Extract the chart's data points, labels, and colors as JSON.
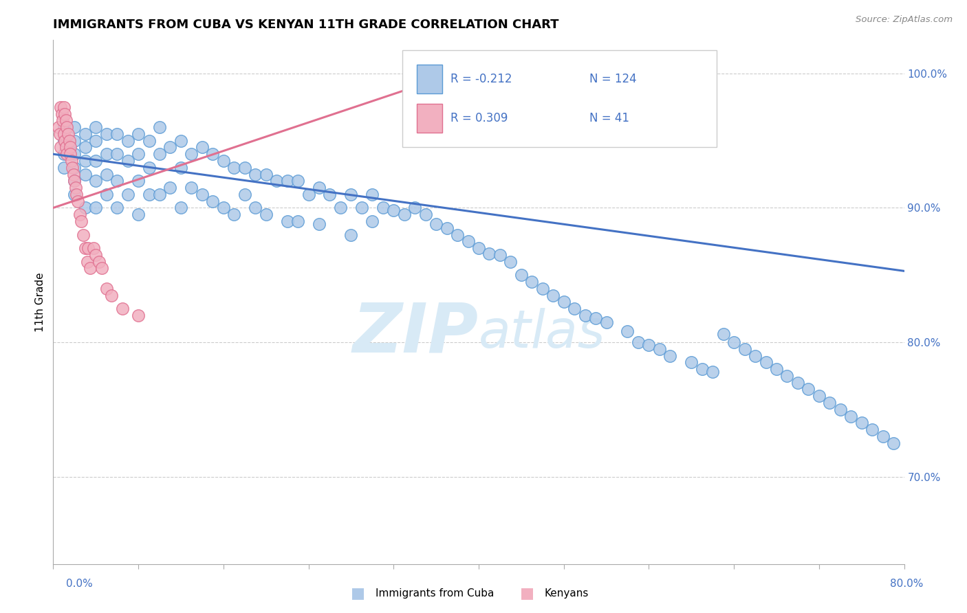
{
  "title": "IMMIGRANTS FROM CUBA VS KENYAN 11TH GRADE CORRELATION CHART",
  "source_text": "Source: ZipAtlas.com",
  "ylabel": "11th Grade",
  "xmin": 0.0,
  "xmax": 0.8,
  "ymin": 0.635,
  "ymax": 1.025,
  "legend_r_cuba": "-0.212",
  "legend_n_cuba": "124",
  "legend_r_kenya": "0.309",
  "legend_n_kenya": "41",
  "color_cuba_fill": "#aec9e8",
  "color_cuba_edge": "#5b9bd5",
  "color_kenya_fill": "#f2b0c0",
  "color_kenya_edge": "#e07090",
  "color_line_cuba": "#4472c4",
  "color_line_kenya": "#e07090",
  "color_text_blue": "#4472c4",
  "watermark_color": "#d8eaf6",
  "blue_trendline_x": [
    0.0,
    0.8
  ],
  "blue_trendline_y": [
    0.94,
    0.853
  ],
  "pink_trendline_x": [
    0.0,
    0.34
  ],
  "pink_trendline_y": [
    0.9,
    0.99
  ],
  "blue_scatter_x": [
    0.01,
    0.01,
    0.01,
    0.01,
    0.02,
    0.02,
    0.02,
    0.02,
    0.02,
    0.02,
    0.03,
    0.03,
    0.03,
    0.03,
    0.03,
    0.04,
    0.04,
    0.04,
    0.04,
    0.04,
    0.05,
    0.05,
    0.05,
    0.05,
    0.06,
    0.06,
    0.06,
    0.06,
    0.07,
    0.07,
    0.07,
    0.08,
    0.08,
    0.08,
    0.08,
    0.09,
    0.09,
    0.09,
    0.1,
    0.1,
    0.1,
    0.11,
    0.11,
    0.12,
    0.12,
    0.12,
    0.13,
    0.13,
    0.14,
    0.14,
    0.15,
    0.15,
    0.16,
    0.16,
    0.17,
    0.17,
    0.18,
    0.18,
    0.19,
    0.19,
    0.2,
    0.2,
    0.21,
    0.22,
    0.22,
    0.23,
    0.23,
    0.24,
    0.25,
    0.25,
    0.26,
    0.27,
    0.28,
    0.28,
    0.29,
    0.3,
    0.3,
    0.31,
    0.32,
    0.33,
    0.34,
    0.35,
    0.36,
    0.37,
    0.38,
    0.39,
    0.4,
    0.41,
    0.42,
    0.43,
    0.44,
    0.45,
    0.46,
    0.47,
    0.48,
    0.49,
    0.5,
    0.51,
    0.52,
    0.54,
    0.55,
    0.56,
    0.57,
    0.58,
    0.6,
    0.61,
    0.62,
    0.63,
    0.64,
    0.65,
    0.66,
    0.67,
    0.68,
    0.69,
    0.7,
    0.71,
    0.72,
    0.73,
    0.74,
    0.75,
    0.76,
    0.77,
    0.78,
    0.79
  ],
  "blue_scatter_y": [
    0.96,
    0.95,
    0.94,
    0.93,
    0.96,
    0.95,
    0.94,
    0.93,
    0.92,
    0.91,
    0.955,
    0.945,
    0.935,
    0.925,
    0.9,
    0.96,
    0.95,
    0.935,
    0.92,
    0.9,
    0.955,
    0.94,
    0.925,
    0.91,
    0.955,
    0.94,
    0.92,
    0.9,
    0.95,
    0.935,
    0.91,
    0.955,
    0.94,
    0.92,
    0.895,
    0.95,
    0.93,
    0.91,
    0.96,
    0.94,
    0.91,
    0.945,
    0.915,
    0.95,
    0.93,
    0.9,
    0.94,
    0.915,
    0.945,
    0.91,
    0.94,
    0.905,
    0.935,
    0.9,
    0.93,
    0.895,
    0.93,
    0.91,
    0.925,
    0.9,
    0.925,
    0.895,
    0.92,
    0.92,
    0.89,
    0.92,
    0.89,
    0.91,
    0.915,
    0.888,
    0.91,
    0.9,
    0.91,
    0.88,
    0.9,
    0.91,
    0.89,
    0.9,
    0.898,
    0.895,
    0.9,
    0.895,
    0.888,
    0.885,
    0.88,
    0.875,
    0.87,
    0.866,
    0.865,
    0.86,
    0.85,
    0.845,
    0.84,
    0.835,
    0.83,
    0.825,
    0.82,
    0.818,
    0.815,
    0.808,
    0.8,
    0.798,
    0.795,
    0.79,
    0.785,
    0.78,
    0.778,
    0.806,
    0.8,
    0.795,
    0.79,
    0.785,
    0.78,
    0.775,
    0.77,
    0.765,
    0.76,
    0.755,
    0.75,
    0.745,
    0.74,
    0.735,
    0.73,
    0.725
  ],
  "pink_scatter_x": [
    0.005,
    0.006,
    0.007,
    0.007,
    0.008,
    0.009,
    0.01,
    0.01,
    0.011,
    0.011,
    0.012,
    0.012,
    0.013,
    0.013,
    0.014,
    0.015,
    0.016,
    0.016,
    0.017,
    0.018,
    0.019,
    0.02,
    0.021,
    0.022,
    0.023,
    0.025,
    0.026,
    0.028,
    0.03,
    0.032,
    0.033,
    0.035,
    0.038,
    0.04,
    0.043,
    0.046,
    0.05,
    0.055,
    0.065,
    0.08,
    0.34
  ],
  "pink_scatter_y": [
    0.96,
    0.955,
    0.975,
    0.945,
    0.97,
    0.965,
    0.975,
    0.955,
    0.97,
    0.95,
    0.965,
    0.945,
    0.96,
    0.94,
    0.955,
    0.95,
    0.945,
    0.94,
    0.935,
    0.93,
    0.925,
    0.92,
    0.915,
    0.91,
    0.905,
    0.895,
    0.89,
    0.88,
    0.87,
    0.86,
    0.87,
    0.855,
    0.87,
    0.865,
    0.86,
    0.855,
    0.84,
    0.835,
    0.825,
    0.82,
    0.995
  ]
}
